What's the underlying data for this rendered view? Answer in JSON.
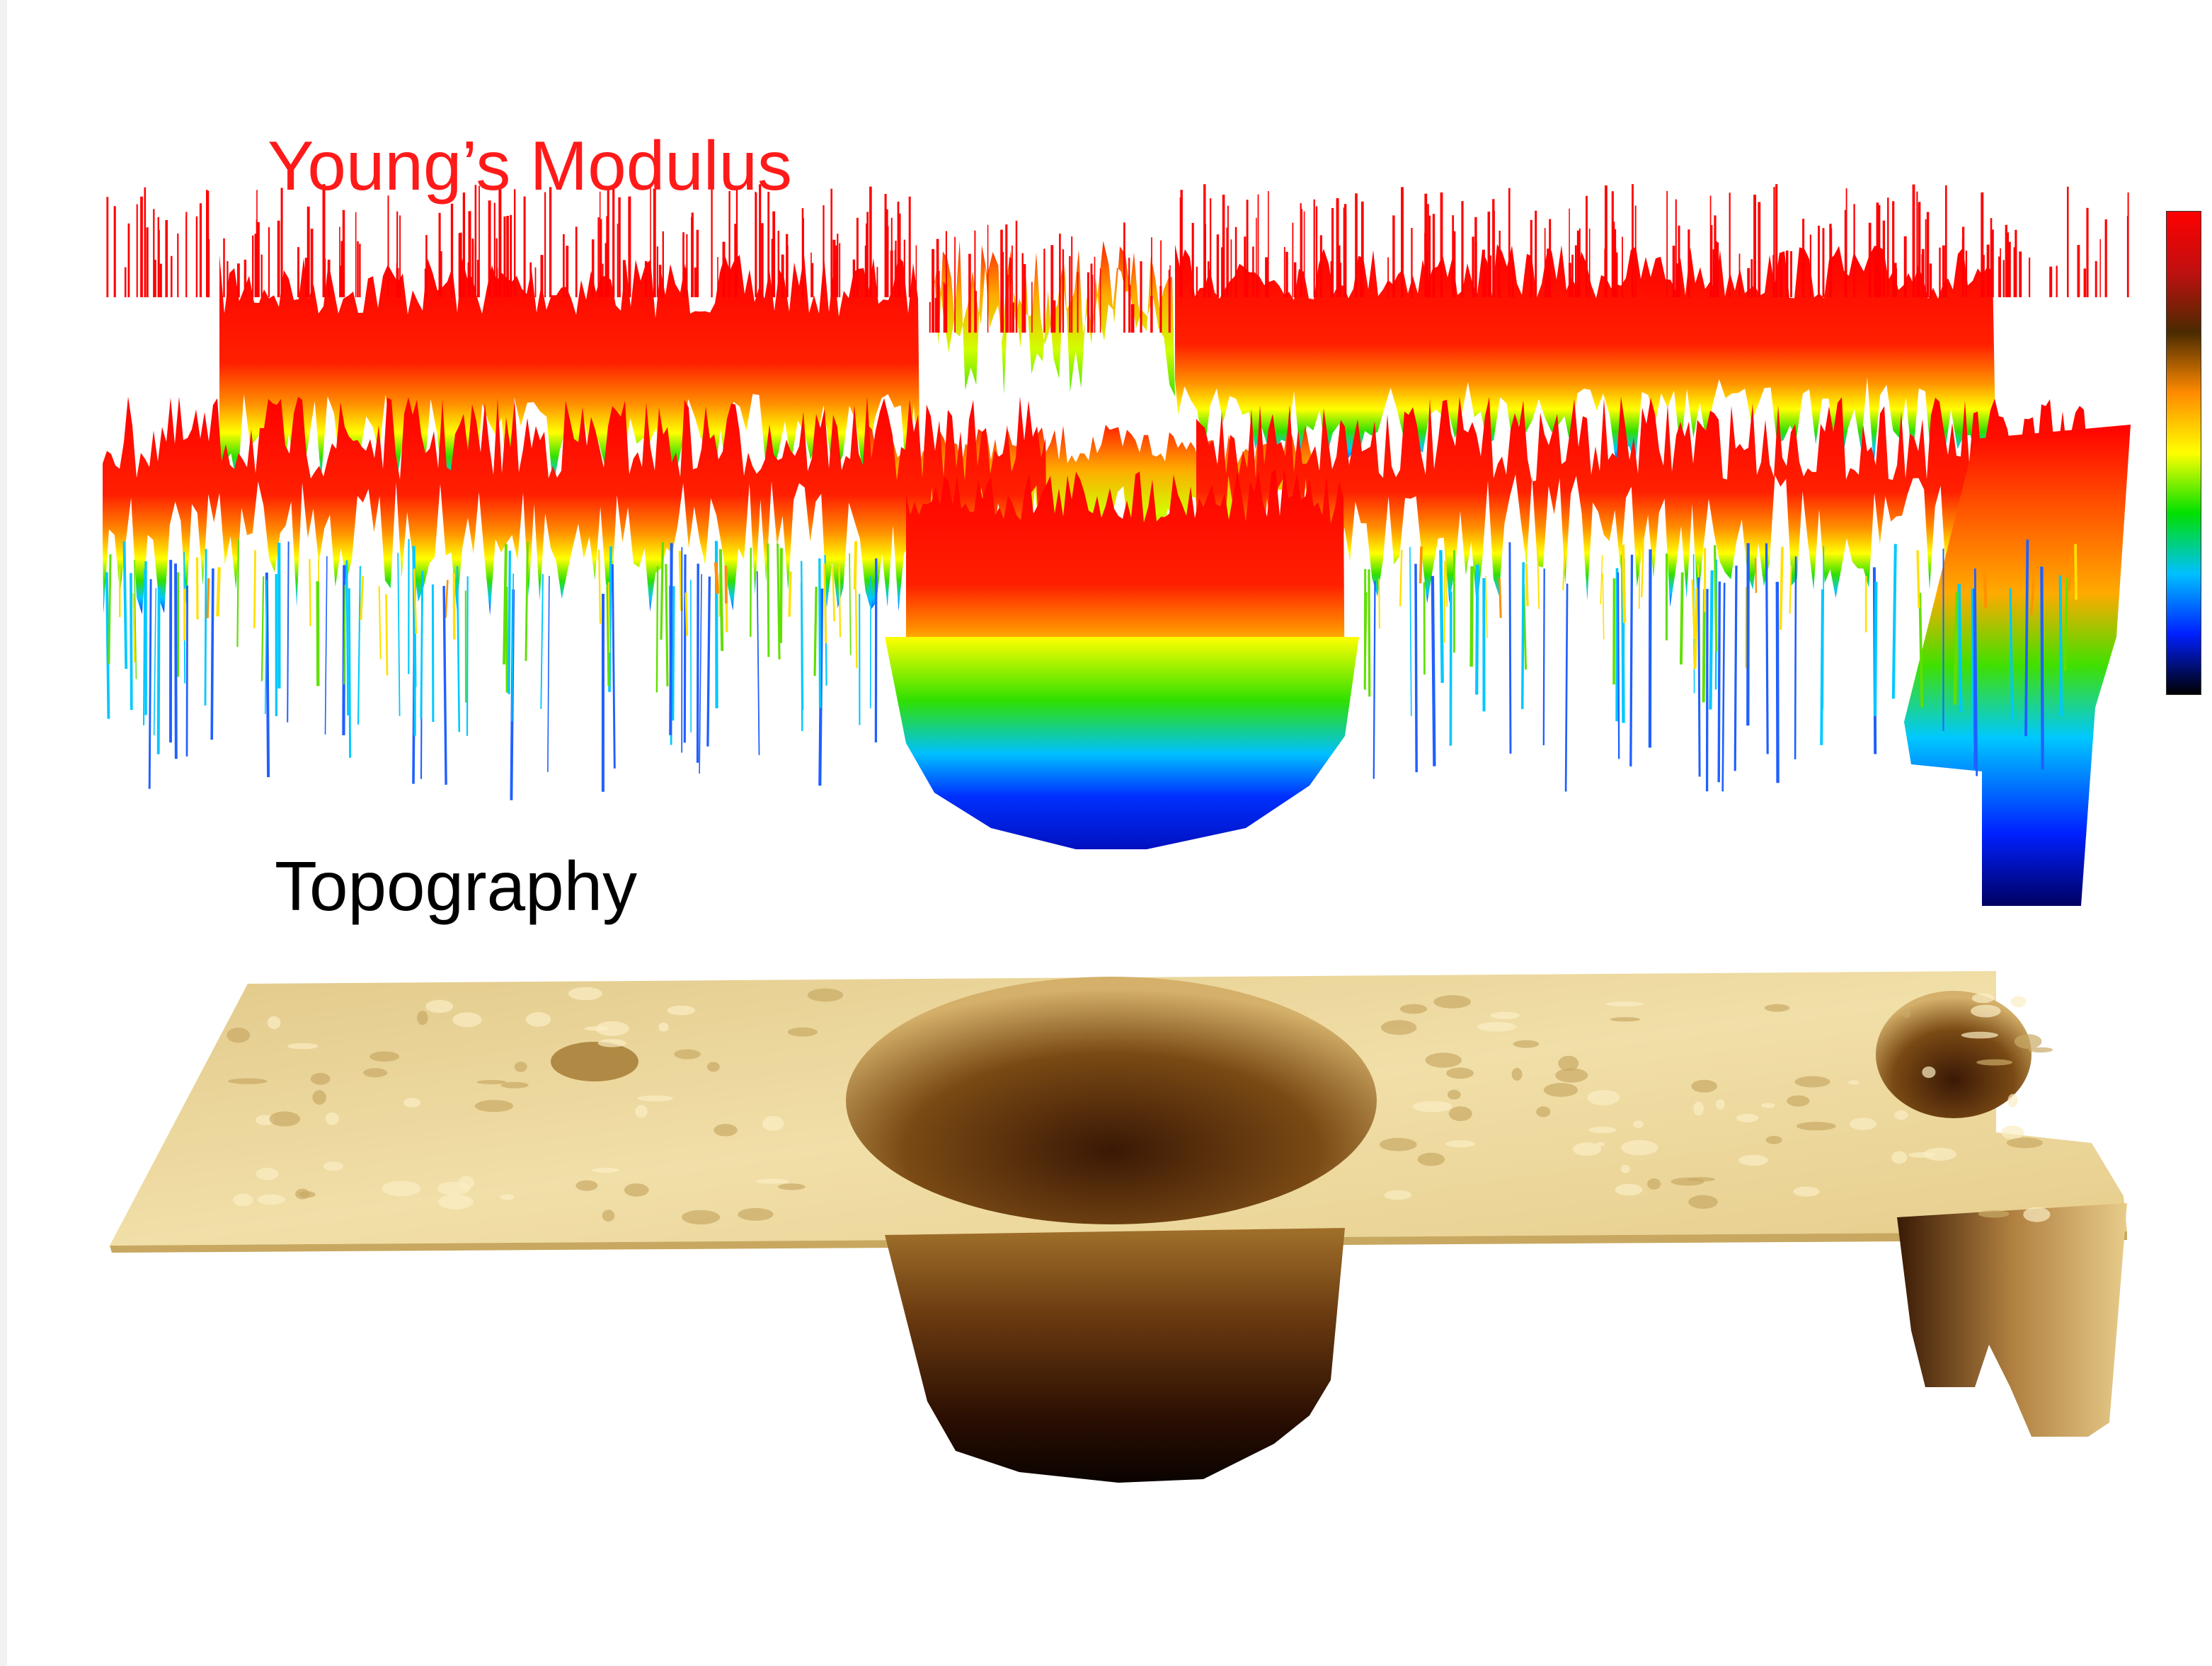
{
  "figure": {
    "modulus_label": "Young’s Modulus",
    "topography_label": "Topography",
    "colors": {
      "modulus_label": "#ff1a1a",
      "topography_label": "#000000",
      "modulus_high": "#ff0000",
      "modulus_low": "#0020e0",
      "topography_surface": "#e9d28e",
      "topography_deep": "#1a0a02"
    },
    "colorbar": {
      "stops": [
        "#ff0000",
        "#c01010",
        "#4a2a00",
        "#ff8a00",
        "#ffff00",
        "#00e000",
        "#00c0ff",
        "#0020ff",
        "#000000"
      ]
    }
  }
}
